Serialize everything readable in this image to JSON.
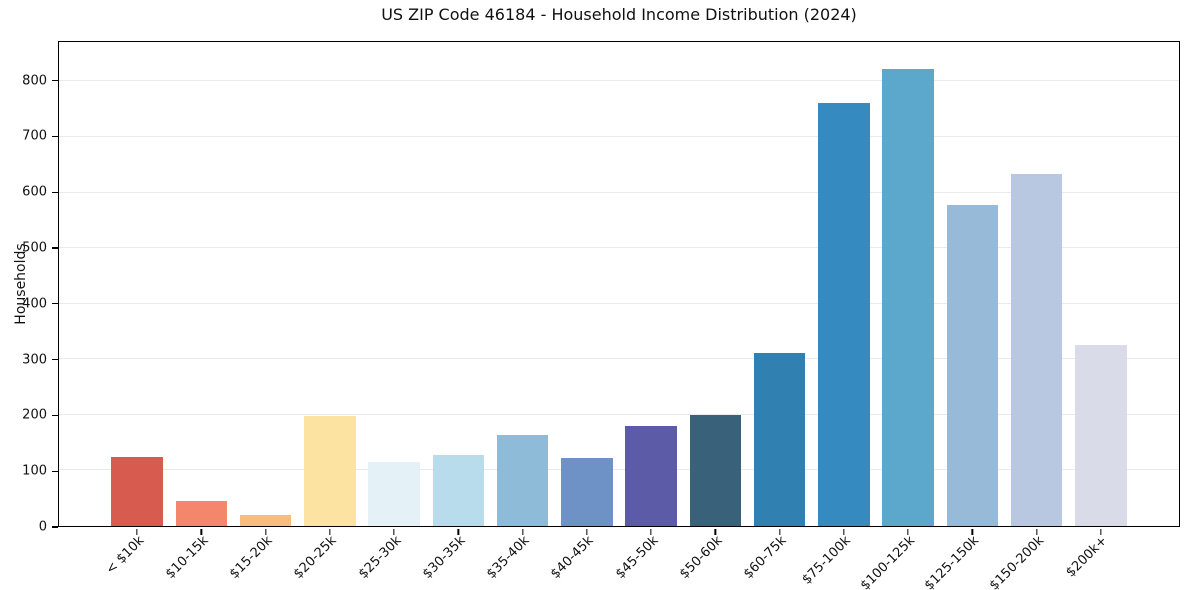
{
  "style": {
    "background": "#ffffff",
    "spine_color": "#000000",
    "grid_color": "#eaeaea",
    "text_color": "#111111"
  },
  "chart_data": {
    "type": "bar",
    "title": "US ZIP Code 46184 - Household Income Distribution (2024)",
    "xlabel": "",
    "ylabel": "Households",
    "ylim": [
      0,
      871
    ],
    "yticks": [
      0,
      100,
      200,
      300,
      400,
      500,
      600,
      700,
      800
    ],
    "grid": "horizontal-light",
    "legend": "none",
    "x_tick_rotation_deg": 45,
    "categories": [
      "< $10k",
      "$10-15k",
      "$15-20k",
      "$20-25k",
      "$25-30k",
      "$30-35k",
      "$35-40k",
      "$40-45k",
      "$45-50k",
      "$50-60k",
      "$60-75k",
      "$75-100k",
      "$100-125k",
      "$125-150k",
      "$150-200k",
      "$200k+"
    ],
    "values": [
      124,
      45,
      19,
      198,
      115,
      127,
      163,
      122,
      180,
      200,
      312,
      762,
      823,
      577,
      634,
      325
    ],
    "bar_colors": [
      "#d85b50",
      "#f4876b",
      "#f9bc7d",
      "#fce3a2",
      "#e4f1f7",
      "#b9dcec",
      "#8ebcd8",
      "#6e92c5",
      "#5b5ba8",
      "#39617a",
      "#3080b2",
      "#358bbf",
      "#5ca7cc",
      "#96bad8",
      "#b7c8e0",
      "#dadbe8"
    ]
  }
}
